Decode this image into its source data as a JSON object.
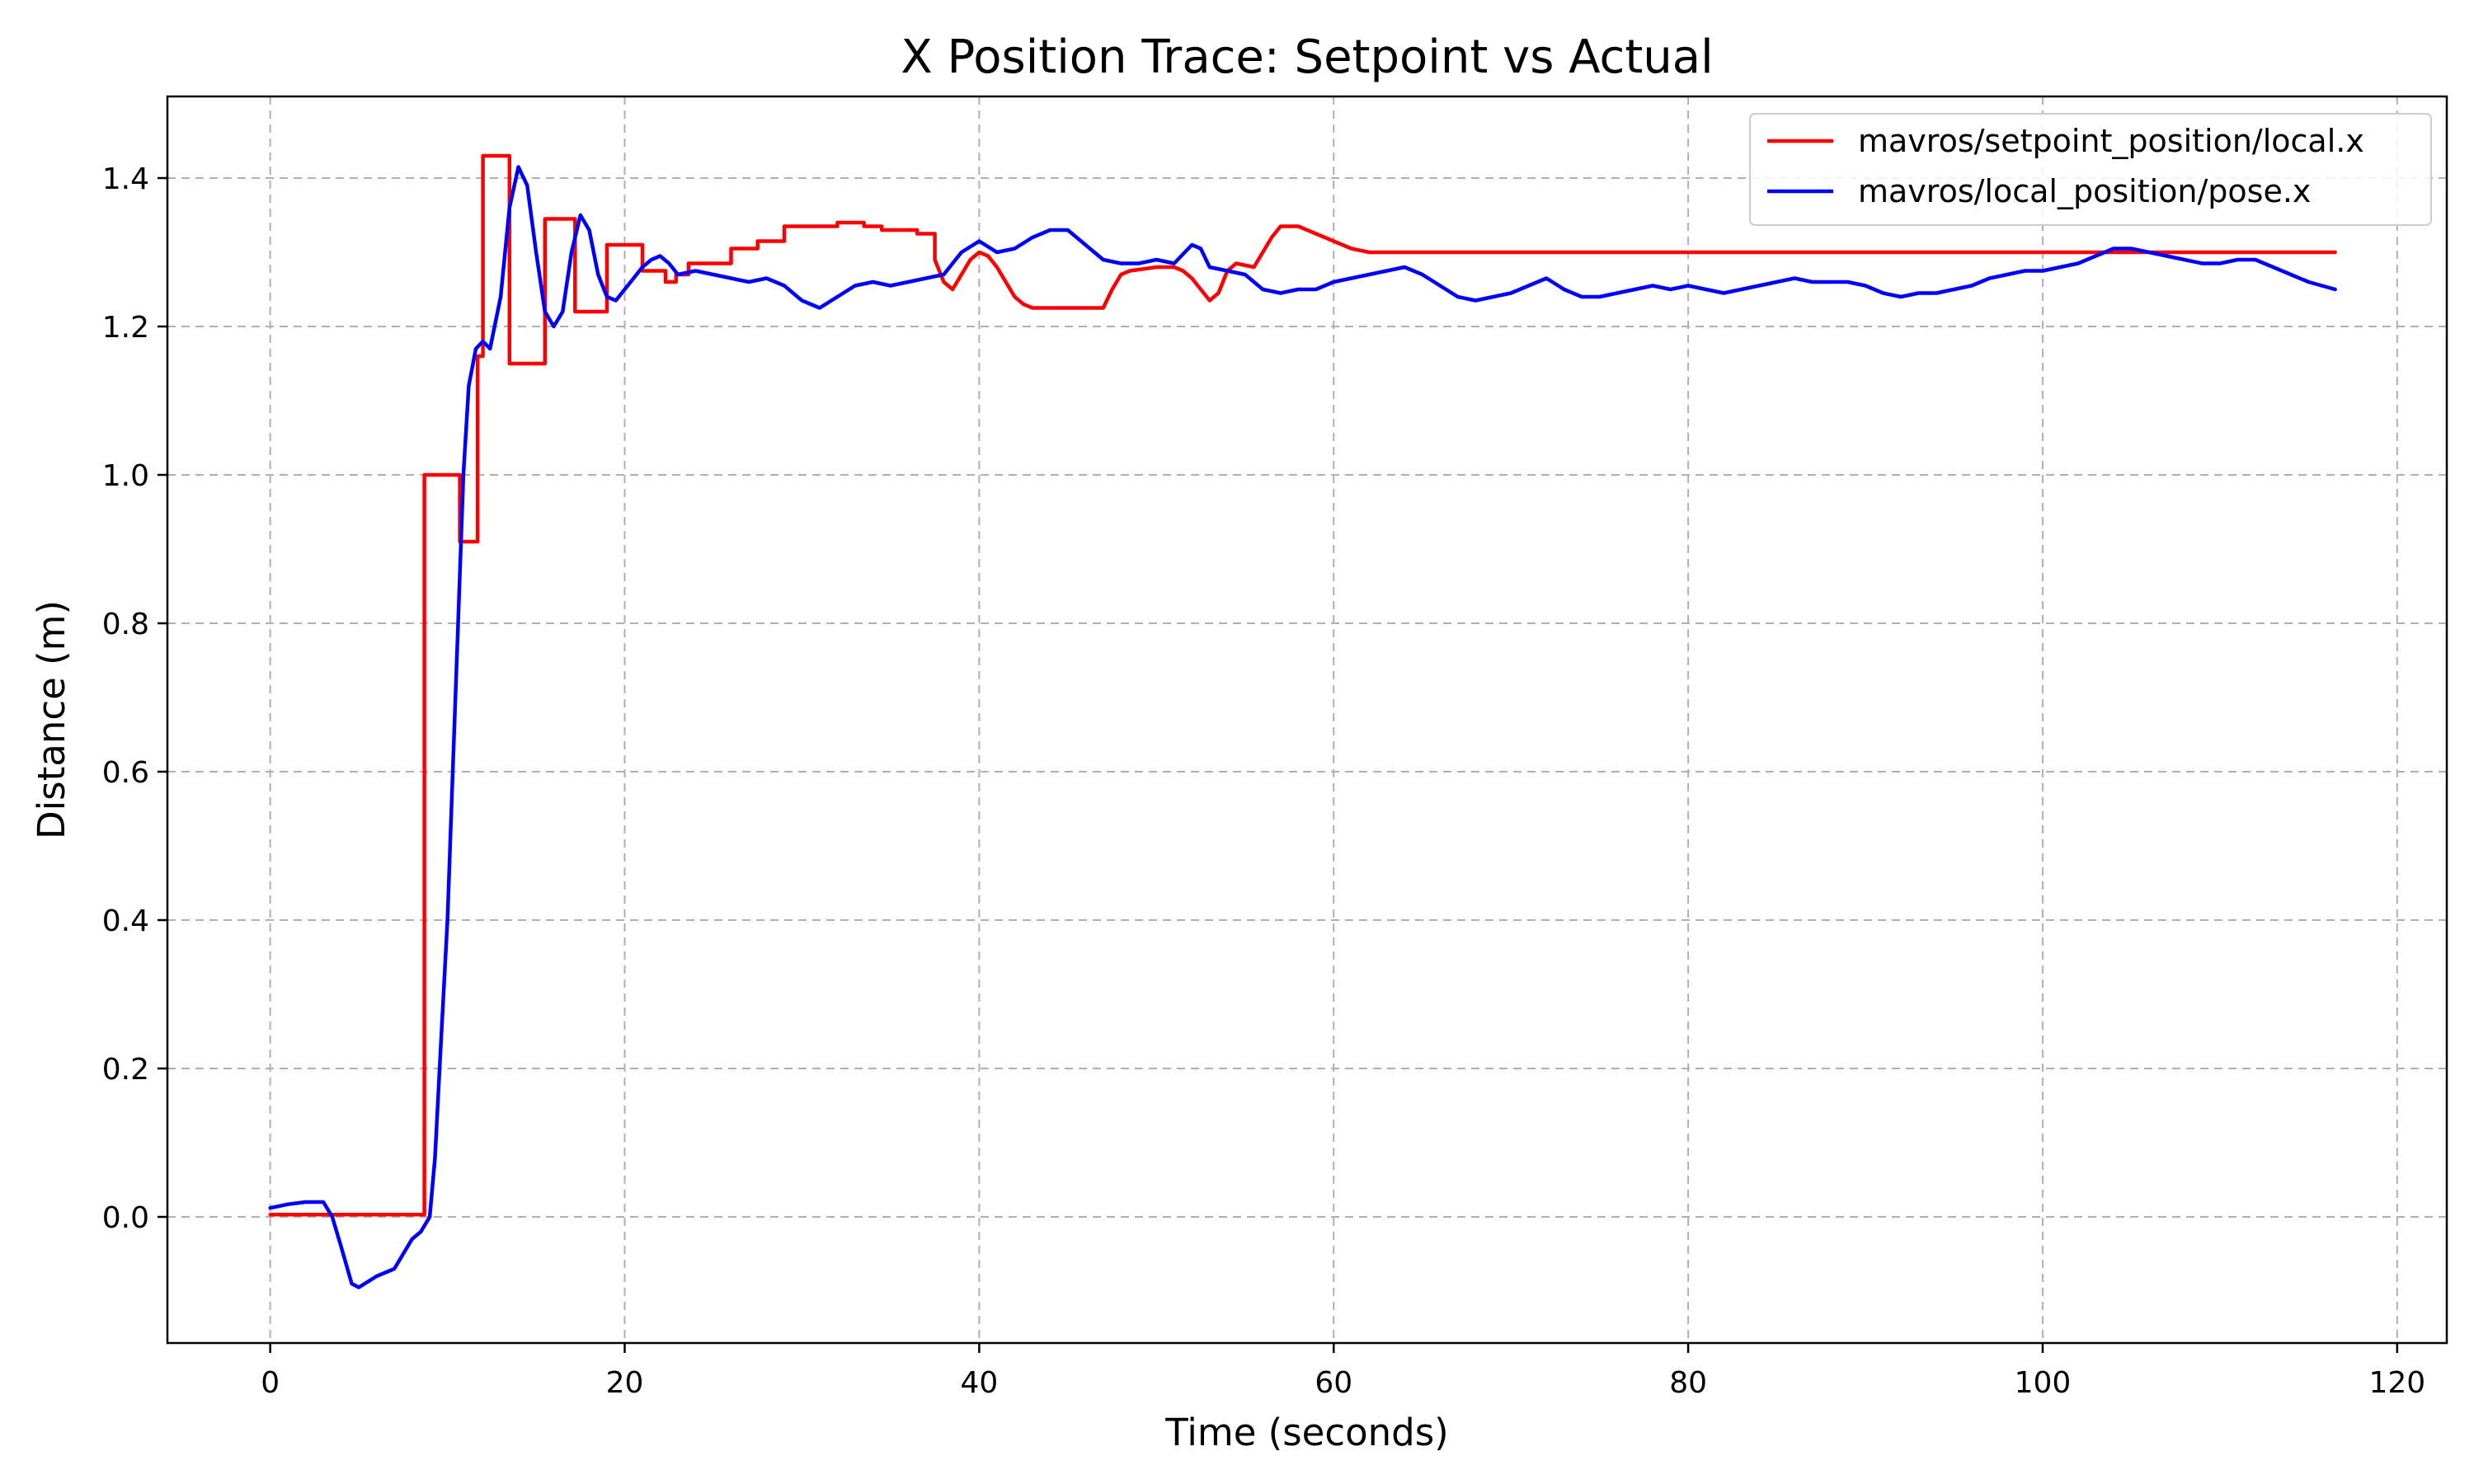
{
  "chart_data": {
    "type": "line",
    "title": "X Position Trace: Setpoint vs Actual",
    "xlabel": "Time (seconds)",
    "ylabel": "Distance (m)",
    "xlim": [
      -5.8,
      122.8
    ],
    "ylim": [
      -0.17,
      1.51
    ],
    "xticks": [
      0,
      20,
      40,
      60,
      80,
      100,
      120
    ],
    "yticks": [
      0.0,
      0.2,
      0.4,
      0.6,
      0.8,
      1.0,
      1.2,
      1.4
    ],
    "xtick_labels": [
      "0",
      "20",
      "40",
      "60",
      "80",
      "100",
      "120"
    ],
    "ytick_labels": [
      "0.0",
      "0.2",
      "0.4",
      "0.6",
      "0.8",
      "1.0",
      "1.2",
      "1.4"
    ],
    "grid": true,
    "legend_position": "top-right",
    "series": [
      {
        "name": "mavros/setpoint_position/local.x",
        "color": "#ff0000",
        "step": true,
        "x": [
          0,
          8.7,
          8.7,
          10.7,
          10.7,
          11.7,
          11.7,
          12.0,
          12.0,
          13.5,
          13.5,
          15.5,
          15.5,
          17.2,
          17.2,
          19.0,
          19.0,
          21.0,
          21.0,
          22.3,
          22.3,
          22.9,
          22.9,
          23.6,
          23.6,
          25.0,
          25.0,
          26.0,
          26.0,
          27.5,
          27.5,
          29.0,
          29.0,
          30.5,
          30.5,
          32.0,
          32.0,
          33.5,
          33.5,
          34.5,
          34.5,
          35.5,
          35.5,
          36.5,
          36.5,
          37.5,
          37.5,
          38.0,
          38.5,
          39.0,
          39.5,
          40.0,
          40.5,
          41.0,
          41.5,
          42.0,
          42.5,
          43.0,
          43.5,
          44.0,
          47.0,
          47.5,
          48.0,
          48.5,
          50.0,
          51.0,
          51.5,
          52.0,
          53.0,
          53.5,
          54.0,
          54.5,
          55.5,
          56.0,
          56.5,
          57.0,
          58.0,
          58.5,
          59.0,
          59.5,
          60.0,
          61.0,
          62.0,
          62.5,
          63.0,
          116.5
        ],
        "y": [
          0.003,
          0.003,
          1.0,
          1.0,
          0.91,
          0.91,
          1.16,
          1.16,
          1.43,
          1.43,
          1.15,
          1.15,
          1.345,
          1.345,
          1.22,
          1.22,
          1.31,
          1.31,
          1.275,
          1.275,
          1.26,
          1.26,
          1.27,
          1.27,
          1.285,
          1.285,
          1.285,
          1.285,
          1.305,
          1.305,
          1.315,
          1.315,
          1.335,
          1.335,
          1.335,
          1.335,
          1.34,
          1.34,
          1.335,
          1.335,
          1.33,
          1.33,
          1.33,
          1.33,
          1.325,
          1.325,
          1.29,
          1.26,
          1.25,
          1.27,
          1.29,
          1.3,
          1.295,
          1.28,
          1.26,
          1.24,
          1.23,
          1.225,
          1.225,
          1.225,
          1.225,
          1.25,
          1.27,
          1.275,
          1.28,
          1.28,
          1.275,
          1.265,
          1.235,
          1.245,
          1.275,
          1.285,
          1.28,
          1.3,
          1.32,
          1.335,
          1.335,
          1.33,
          1.325,
          1.32,
          1.315,
          1.305,
          1.3,
          1.3,
          1.3,
          1.3
        ]
      },
      {
        "name": "mavros/local_position/pose.x",
        "color": "#0000ff",
        "step": false,
        "x": [
          0,
          1,
          2,
          3,
          3.5,
          4,
          4.6,
          5,
          6,
          7,
          7.5,
          8,
          8.5,
          9,
          9.3,
          9.6,
          10.0,
          10.3,
          10.6,
          10.9,
          11.2,
          11.6,
          12.0,
          12.4,
          13.0,
          13.5,
          14.0,
          14.5,
          15.0,
          15.5,
          16.0,
          16.5,
          17.0,
          17.5,
          18.0,
          18.5,
          19.0,
          19.5,
          20.0,
          20.5,
          21.0,
          21.5,
          22.0,
          22.5,
          23.0,
          24.0,
          25.0,
          26.0,
          27.0,
          28.0,
          29.0,
          30.0,
          31.0,
          32.0,
          33.0,
          34.0,
          35.0,
          36.0,
          37.0,
          38.0,
          39.0,
          40.0,
          41.0,
          42.0,
          43.0,
          44.0,
          45.0,
          46.0,
          47.0,
          48.0,
          49.0,
          50.0,
          51.0,
          52.0,
          52.5,
          53.0,
          54.0,
          55.0,
          56.0,
          57.0,
          58.0,
          59.0,
          60.0,
          61.0,
          62.0,
          63.0,
          64.0,
          65.0,
          66.0,
          67.0,
          68.0,
          69.0,
          70.0,
          71.0,
          72.0,
          73.0,
          74.0,
          75.0,
          76.0,
          77.0,
          78.0,
          79.0,
          80.0,
          81.0,
          82.0,
          83.0,
          84.0,
          85.0,
          86.0,
          87.0,
          88.0,
          89.0,
          90.0,
          91.0,
          92.0,
          93.0,
          94.0,
          95.0,
          96.0,
          97.0,
          98.0,
          99.0,
          100.0,
          101.0,
          102.0,
          103.0,
          104.0,
          105.0,
          106.0,
          107.0,
          108.0,
          109.0,
          110.0,
          111.0,
          112.0,
          113.0,
          114.0,
          115.0,
          116.5
        ],
        "y": [
          0.012,
          0.017,
          0.02,
          0.02,
          0.0,
          -0.04,
          -0.09,
          -0.095,
          -0.08,
          -0.07,
          -0.05,
          -0.03,
          -0.02,
          0.0,
          0.08,
          0.22,
          0.4,
          0.6,
          0.8,
          1.0,
          1.12,
          1.17,
          1.18,
          1.17,
          1.24,
          1.36,
          1.415,
          1.39,
          1.3,
          1.22,
          1.2,
          1.22,
          1.3,
          1.35,
          1.33,
          1.27,
          1.24,
          1.235,
          1.25,
          1.265,
          1.28,
          1.29,
          1.295,
          1.285,
          1.27,
          1.275,
          1.27,
          1.265,
          1.26,
          1.265,
          1.255,
          1.235,
          1.225,
          1.24,
          1.255,
          1.26,
          1.255,
          1.26,
          1.265,
          1.27,
          1.3,
          1.315,
          1.3,
          1.305,
          1.32,
          1.33,
          1.33,
          1.31,
          1.29,
          1.285,
          1.285,
          1.29,
          1.285,
          1.31,
          1.305,
          1.28,
          1.275,
          1.27,
          1.25,
          1.245,
          1.25,
          1.25,
          1.26,
          1.265,
          1.27,
          1.275,
          1.28,
          1.27,
          1.255,
          1.24,
          1.235,
          1.24,
          1.245,
          1.255,
          1.265,
          1.25,
          1.24,
          1.24,
          1.245,
          1.25,
          1.255,
          1.25,
          1.255,
          1.25,
          1.245,
          1.25,
          1.255,
          1.26,
          1.265,
          1.26,
          1.26,
          1.26,
          1.255,
          1.245,
          1.24,
          1.245,
          1.245,
          1.25,
          1.255,
          1.265,
          1.27,
          1.275,
          1.275,
          1.28,
          1.285,
          1.295,
          1.305,
          1.305,
          1.3,
          1.295,
          1.29,
          1.285,
          1.285,
          1.29,
          1.29,
          1.28,
          1.27,
          1.26,
          1.25
        ]
      }
    ]
  }
}
